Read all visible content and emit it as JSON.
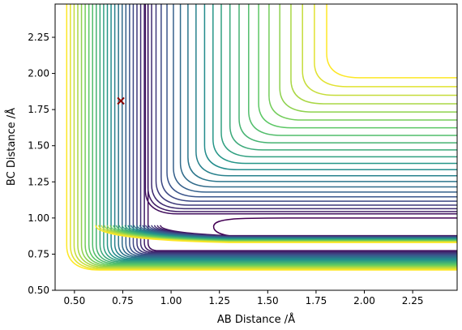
{
  "chart_data": {
    "type": "contour",
    "title": "",
    "xlabel": "AB Distance /Å",
    "ylabel": "BC Distance /Å",
    "xlim": [
      0.4,
      2.48
    ],
    "ylim": [
      0.5,
      2.48
    ],
    "xticks": [
      "0.50",
      "0.75",
      "1.00",
      "1.25",
      "1.50",
      "1.75",
      "2.00",
      "2.25"
    ],
    "yticks": [
      "0.50",
      "0.75",
      "1.00",
      "1.25",
      "1.50",
      "1.75",
      "2.00",
      "2.25"
    ],
    "grid": false,
    "colormap": "viridis",
    "contour_levels": 24,
    "marker": {
      "x": 0.74,
      "y": 1.81,
      "color": "#8b0000",
      "symbol": "x"
    }
  }
}
